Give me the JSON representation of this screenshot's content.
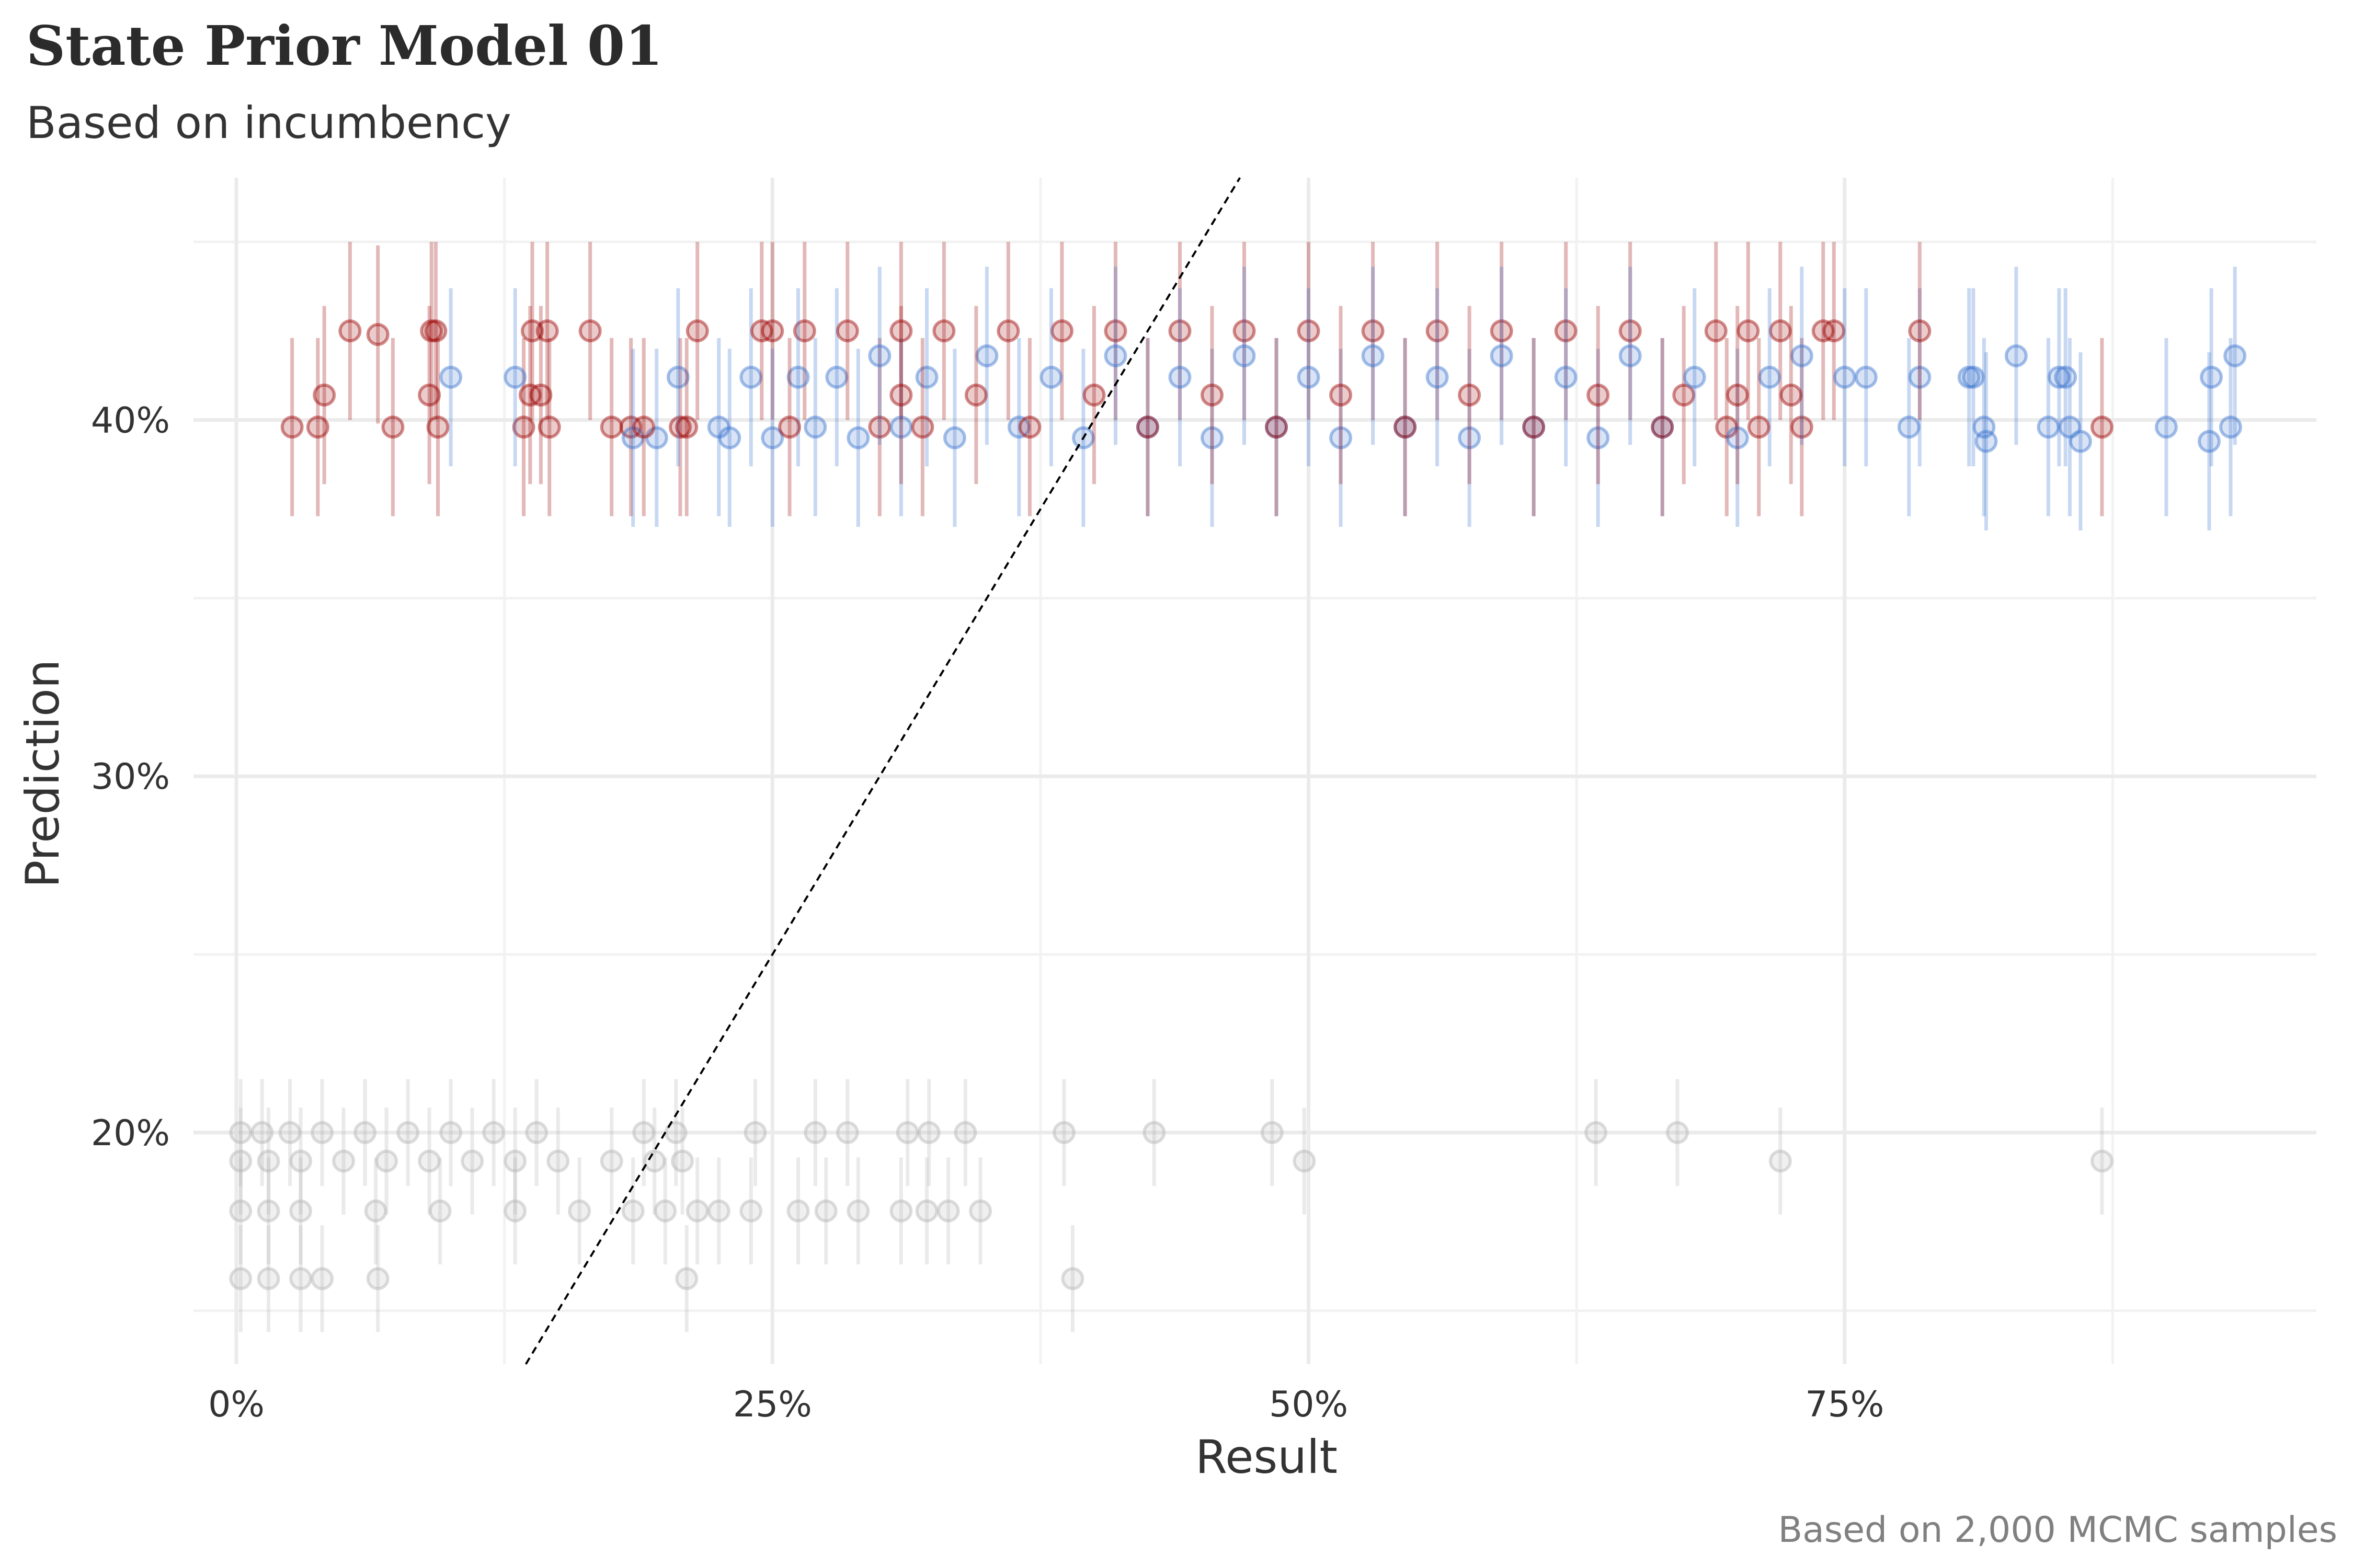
{
  "chart_data": {
    "type": "scatter",
    "title": "State Prior Model 01",
    "subtitle": "Based on incumbency",
    "xlabel": "Result",
    "ylabel": "Prediction",
    "caption": "Based on 2,000 MCMC samples",
    "xlim": [
      -0.02,
      0.97
    ],
    "ylim": [
      0.135,
      0.468
    ],
    "x_ticks": [
      {
        "value": 0.0,
        "label": "0%"
      },
      {
        "value": 0.25,
        "label": "25%"
      },
      {
        "value": 0.5,
        "label": "50%"
      },
      {
        "value": 0.75,
        "label": "75%"
      }
    ],
    "y_ticks": [
      {
        "value": 0.2,
        "label": "20%"
      },
      {
        "value": 0.3,
        "label": "30%"
      },
      {
        "value": 0.4,
        "label": "40%"
      }
    ],
    "reference_line": {
      "slope": 1,
      "intercept": 0,
      "style": "dashed",
      "color": "#000000"
    },
    "grid": true,
    "legend": "none",
    "series": [
      {
        "color": "#9b0000",
        "interval_low_offset": 0.025,
        "interval_high_offset": 0.025,
        "points": [
          {
            "x": 0.026,
            "y": 0.398
          },
          {
            "x": 0.038,
            "y": 0.398
          },
          {
            "x": 0.041,
            "y": 0.407
          },
          {
            "x": 0.053,
            "y": 0.425
          },
          {
            "x": 0.066,
            "y": 0.424
          },
          {
            "x": 0.073,
            "y": 0.398
          },
          {
            "x": 0.09,
            "y": 0.407
          },
          {
            "x": 0.091,
            "y": 0.425
          },
          {
            "x": 0.093,
            "y": 0.425
          },
          {
            "x": 0.094,
            "y": 0.398
          },
          {
            "x": 0.134,
            "y": 0.398
          },
          {
            "x": 0.137,
            "y": 0.407
          },
          {
            "x": 0.138,
            "y": 0.425
          },
          {
            "x": 0.142,
            "y": 0.407
          },
          {
            "x": 0.145,
            "y": 0.425
          },
          {
            "x": 0.146,
            "y": 0.398
          },
          {
            "x": 0.165,
            "y": 0.425
          },
          {
            "x": 0.175,
            "y": 0.398
          },
          {
            "x": 0.184,
            "y": 0.398
          },
          {
            "x": 0.19,
            "y": 0.398
          },
          {
            "x": 0.207,
            "y": 0.398
          },
          {
            "x": 0.21,
            "y": 0.398
          },
          {
            "x": 0.215,
            "y": 0.425
          },
          {
            "x": 0.245,
            "y": 0.425
          },
          {
            "x": 0.25,
            "y": 0.425
          },
          {
            "x": 0.258,
            "y": 0.398
          },
          {
            "x": 0.265,
            "y": 0.425
          },
          {
            "x": 0.285,
            "y": 0.425
          },
          {
            "x": 0.3,
            "y": 0.398
          },
          {
            "x": 0.31,
            "y": 0.407
          },
          {
            "x": 0.31,
            "y": 0.425
          },
          {
            "x": 0.32,
            "y": 0.398
          },
          {
            "x": 0.33,
            "y": 0.425
          },
          {
            "x": 0.345,
            "y": 0.407
          },
          {
            "x": 0.36,
            "y": 0.425
          },
          {
            "x": 0.37,
            "y": 0.398
          },
          {
            "x": 0.385,
            "y": 0.425
          },
          {
            "x": 0.4,
            "y": 0.407
          },
          {
            "x": 0.41,
            "y": 0.425
          },
          {
            "x": 0.425,
            "y": 0.398
          },
          {
            "x": 0.44,
            "y": 0.425
          },
          {
            "x": 0.455,
            "y": 0.407
          },
          {
            "x": 0.47,
            "y": 0.425
          },
          {
            "x": 0.485,
            "y": 0.398
          },
          {
            "x": 0.5,
            "y": 0.425
          },
          {
            "x": 0.515,
            "y": 0.407
          },
          {
            "x": 0.53,
            "y": 0.425
          },
          {
            "x": 0.545,
            "y": 0.398
          },
          {
            "x": 0.56,
            "y": 0.425
          },
          {
            "x": 0.575,
            "y": 0.407
          },
          {
            "x": 0.59,
            "y": 0.425
          },
          {
            "x": 0.605,
            "y": 0.398
          },
          {
            "x": 0.62,
            "y": 0.425
          },
          {
            "x": 0.635,
            "y": 0.407
          },
          {
            "x": 0.65,
            "y": 0.425
          },
          {
            "x": 0.665,
            "y": 0.398
          },
          {
            "x": 0.675,
            "y": 0.407
          },
          {
            "x": 0.69,
            "y": 0.425
          },
          {
            "x": 0.695,
            "y": 0.398
          },
          {
            "x": 0.7,
            "y": 0.407
          },
          {
            "x": 0.705,
            "y": 0.425
          },
          {
            "x": 0.71,
            "y": 0.398
          },
          {
            "x": 0.72,
            "y": 0.425
          },
          {
            "x": 0.725,
            "y": 0.407
          },
          {
            "x": 0.73,
            "y": 0.398
          },
          {
            "x": 0.74,
            "y": 0.425
          },
          {
            "x": 0.745,
            "y": 0.425
          },
          {
            "x": 0.785,
            "y": 0.425
          },
          {
            "x": 0.87,
            "y": 0.398
          }
        ]
      },
      {
        "color": "#3a74cf",
        "interval_low_offset": 0.025,
        "interval_high_offset": 0.025,
        "points": [
          {
            "x": 0.1,
            "y": 0.412
          },
          {
            "x": 0.13,
            "y": 0.412
          },
          {
            "x": 0.185,
            "y": 0.395
          },
          {
            "x": 0.196,
            "y": 0.395
          },
          {
            "x": 0.206,
            "y": 0.412
          },
          {
            "x": 0.225,
            "y": 0.398
          },
          {
            "x": 0.23,
            "y": 0.395
          },
          {
            "x": 0.24,
            "y": 0.412
          },
          {
            "x": 0.25,
            "y": 0.395
          },
          {
            "x": 0.262,
            "y": 0.412
          },
          {
            "x": 0.27,
            "y": 0.398
          },
          {
            "x": 0.28,
            "y": 0.412
          },
          {
            "x": 0.29,
            "y": 0.395
          },
          {
            "x": 0.3,
            "y": 0.418
          },
          {
            "x": 0.31,
            "y": 0.398
          },
          {
            "x": 0.322,
            "y": 0.412
          },
          {
            "x": 0.335,
            "y": 0.395
          },
          {
            "x": 0.35,
            "y": 0.418
          },
          {
            "x": 0.365,
            "y": 0.398
          },
          {
            "x": 0.38,
            "y": 0.412
          },
          {
            "x": 0.395,
            "y": 0.395
          },
          {
            "x": 0.41,
            "y": 0.418
          },
          {
            "x": 0.425,
            "y": 0.398
          },
          {
            "x": 0.44,
            "y": 0.412
          },
          {
            "x": 0.455,
            "y": 0.395
          },
          {
            "x": 0.47,
            "y": 0.418
          },
          {
            "x": 0.485,
            "y": 0.398
          },
          {
            "x": 0.5,
            "y": 0.412
          },
          {
            "x": 0.515,
            "y": 0.395
          },
          {
            "x": 0.53,
            "y": 0.418
          },
          {
            "x": 0.545,
            "y": 0.398
          },
          {
            "x": 0.56,
            "y": 0.412
          },
          {
            "x": 0.575,
            "y": 0.395
          },
          {
            "x": 0.59,
            "y": 0.418
          },
          {
            "x": 0.605,
            "y": 0.398
          },
          {
            "x": 0.62,
            "y": 0.412
          },
          {
            "x": 0.635,
            "y": 0.395
          },
          {
            "x": 0.65,
            "y": 0.418
          },
          {
            "x": 0.665,
            "y": 0.398
          },
          {
            "x": 0.68,
            "y": 0.412
          },
          {
            "x": 0.7,
            "y": 0.395
          },
          {
            "x": 0.715,
            "y": 0.412
          },
          {
            "x": 0.73,
            "y": 0.418
          },
          {
            "x": 0.75,
            "y": 0.412
          },
          {
            "x": 0.76,
            "y": 0.412
          },
          {
            "x": 0.78,
            "y": 0.398
          },
          {
            "x": 0.785,
            "y": 0.412
          },
          {
            "x": 0.808,
            "y": 0.412
          },
          {
            "x": 0.81,
            "y": 0.412
          },
          {
            "x": 0.815,
            "y": 0.398
          },
          {
            "x": 0.816,
            "y": 0.394
          },
          {
            "x": 0.83,
            "y": 0.418
          },
          {
            "x": 0.845,
            "y": 0.398
          },
          {
            "x": 0.85,
            "y": 0.412
          },
          {
            "x": 0.853,
            "y": 0.412
          },
          {
            "x": 0.855,
            "y": 0.398
          },
          {
            "x": 0.86,
            "y": 0.394
          },
          {
            "x": 0.9,
            "y": 0.398
          },
          {
            "x": 0.92,
            "y": 0.394
          },
          {
            "x": 0.921,
            "y": 0.412
          },
          {
            "x": 0.93,
            "y": 0.398
          },
          {
            "x": 0.932,
            "y": 0.418
          }
        ]
      },
      {
        "color": "#b4b4b4",
        "interval_low_offset": 0.015,
        "interval_high_offset": 0.015,
        "points": [
          {
            "x": 0.002,
            "y": 0.2
          },
          {
            "x": 0.012,
            "y": 0.2
          },
          {
            "x": 0.025,
            "y": 0.2
          },
          {
            "x": 0.04,
            "y": 0.2
          },
          {
            "x": 0.06,
            "y": 0.2
          },
          {
            "x": 0.08,
            "y": 0.2
          },
          {
            "x": 0.1,
            "y": 0.2
          },
          {
            "x": 0.12,
            "y": 0.2
          },
          {
            "x": 0.14,
            "y": 0.2
          },
          {
            "x": 0.19,
            "y": 0.2
          },
          {
            "x": 0.205,
            "y": 0.2
          },
          {
            "x": 0.242,
            "y": 0.2
          },
          {
            "x": 0.27,
            "y": 0.2
          },
          {
            "x": 0.285,
            "y": 0.2
          },
          {
            "x": 0.313,
            "y": 0.2
          },
          {
            "x": 0.323,
            "y": 0.2
          },
          {
            "x": 0.34,
            "y": 0.2
          },
          {
            "x": 0.386,
            "y": 0.2
          },
          {
            "x": 0.428,
            "y": 0.2
          },
          {
            "x": 0.483,
            "y": 0.2
          },
          {
            "x": 0.634,
            "y": 0.2
          },
          {
            "x": 0.672,
            "y": 0.2
          },
          {
            "x": 0.002,
            "y": 0.192
          },
          {
            "x": 0.015,
            "y": 0.192
          },
          {
            "x": 0.03,
            "y": 0.192
          },
          {
            "x": 0.05,
            "y": 0.192
          },
          {
            "x": 0.07,
            "y": 0.192
          },
          {
            "x": 0.09,
            "y": 0.192
          },
          {
            "x": 0.11,
            "y": 0.192
          },
          {
            "x": 0.13,
            "y": 0.192
          },
          {
            "x": 0.15,
            "y": 0.192
          },
          {
            "x": 0.175,
            "y": 0.192
          },
          {
            "x": 0.195,
            "y": 0.192
          },
          {
            "x": 0.208,
            "y": 0.192
          },
          {
            "x": 0.498,
            "y": 0.192
          },
          {
            "x": 0.72,
            "y": 0.192
          },
          {
            "x": 0.87,
            "y": 0.192
          },
          {
            "x": 0.002,
            "y": 0.178
          },
          {
            "x": 0.015,
            "y": 0.178
          },
          {
            "x": 0.03,
            "y": 0.178
          },
          {
            "x": 0.065,
            "y": 0.178
          },
          {
            "x": 0.095,
            "y": 0.178
          },
          {
            "x": 0.13,
            "y": 0.178
          },
          {
            "x": 0.16,
            "y": 0.178
          },
          {
            "x": 0.185,
            "y": 0.178
          },
          {
            "x": 0.2,
            "y": 0.178
          },
          {
            "x": 0.215,
            "y": 0.178
          },
          {
            "x": 0.225,
            "y": 0.178
          },
          {
            "x": 0.24,
            "y": 0.178
          },
          {
            "x": 0.262,
            "y": 0.178
          },
          {
            "x": 0.275,
            "y": 0.178
          },
          {
            "x": 0.29,
            "y": 0.178
          },
          {
            "x": 0.31,
            "y": 0.178
          },
          {
            "x": 0.322,
            "y": 0.178
          },
          {
            "x": 0.332,
            "y": 0.178
          },
          {
            "x": 0.347,
            "y": 0.178
          },
          {
            "x": 0.002,
            "y": 0.159
          },
          {
            "x": 0.015,
            "y": 0.159
          },
          {
            "x": 0.03,
            "y": 0.159
          },
          {
            "x": 0.04,
            "y": 0.159
          },
          {
            "x": 0.066,
            "y": 0.159
          },
          {
            "x": 0.21,
            "y": 0.159
          },
          {
            "x": 0.39,
            "y": 0.159
          }
        ]
      }
    ]
  }
}
